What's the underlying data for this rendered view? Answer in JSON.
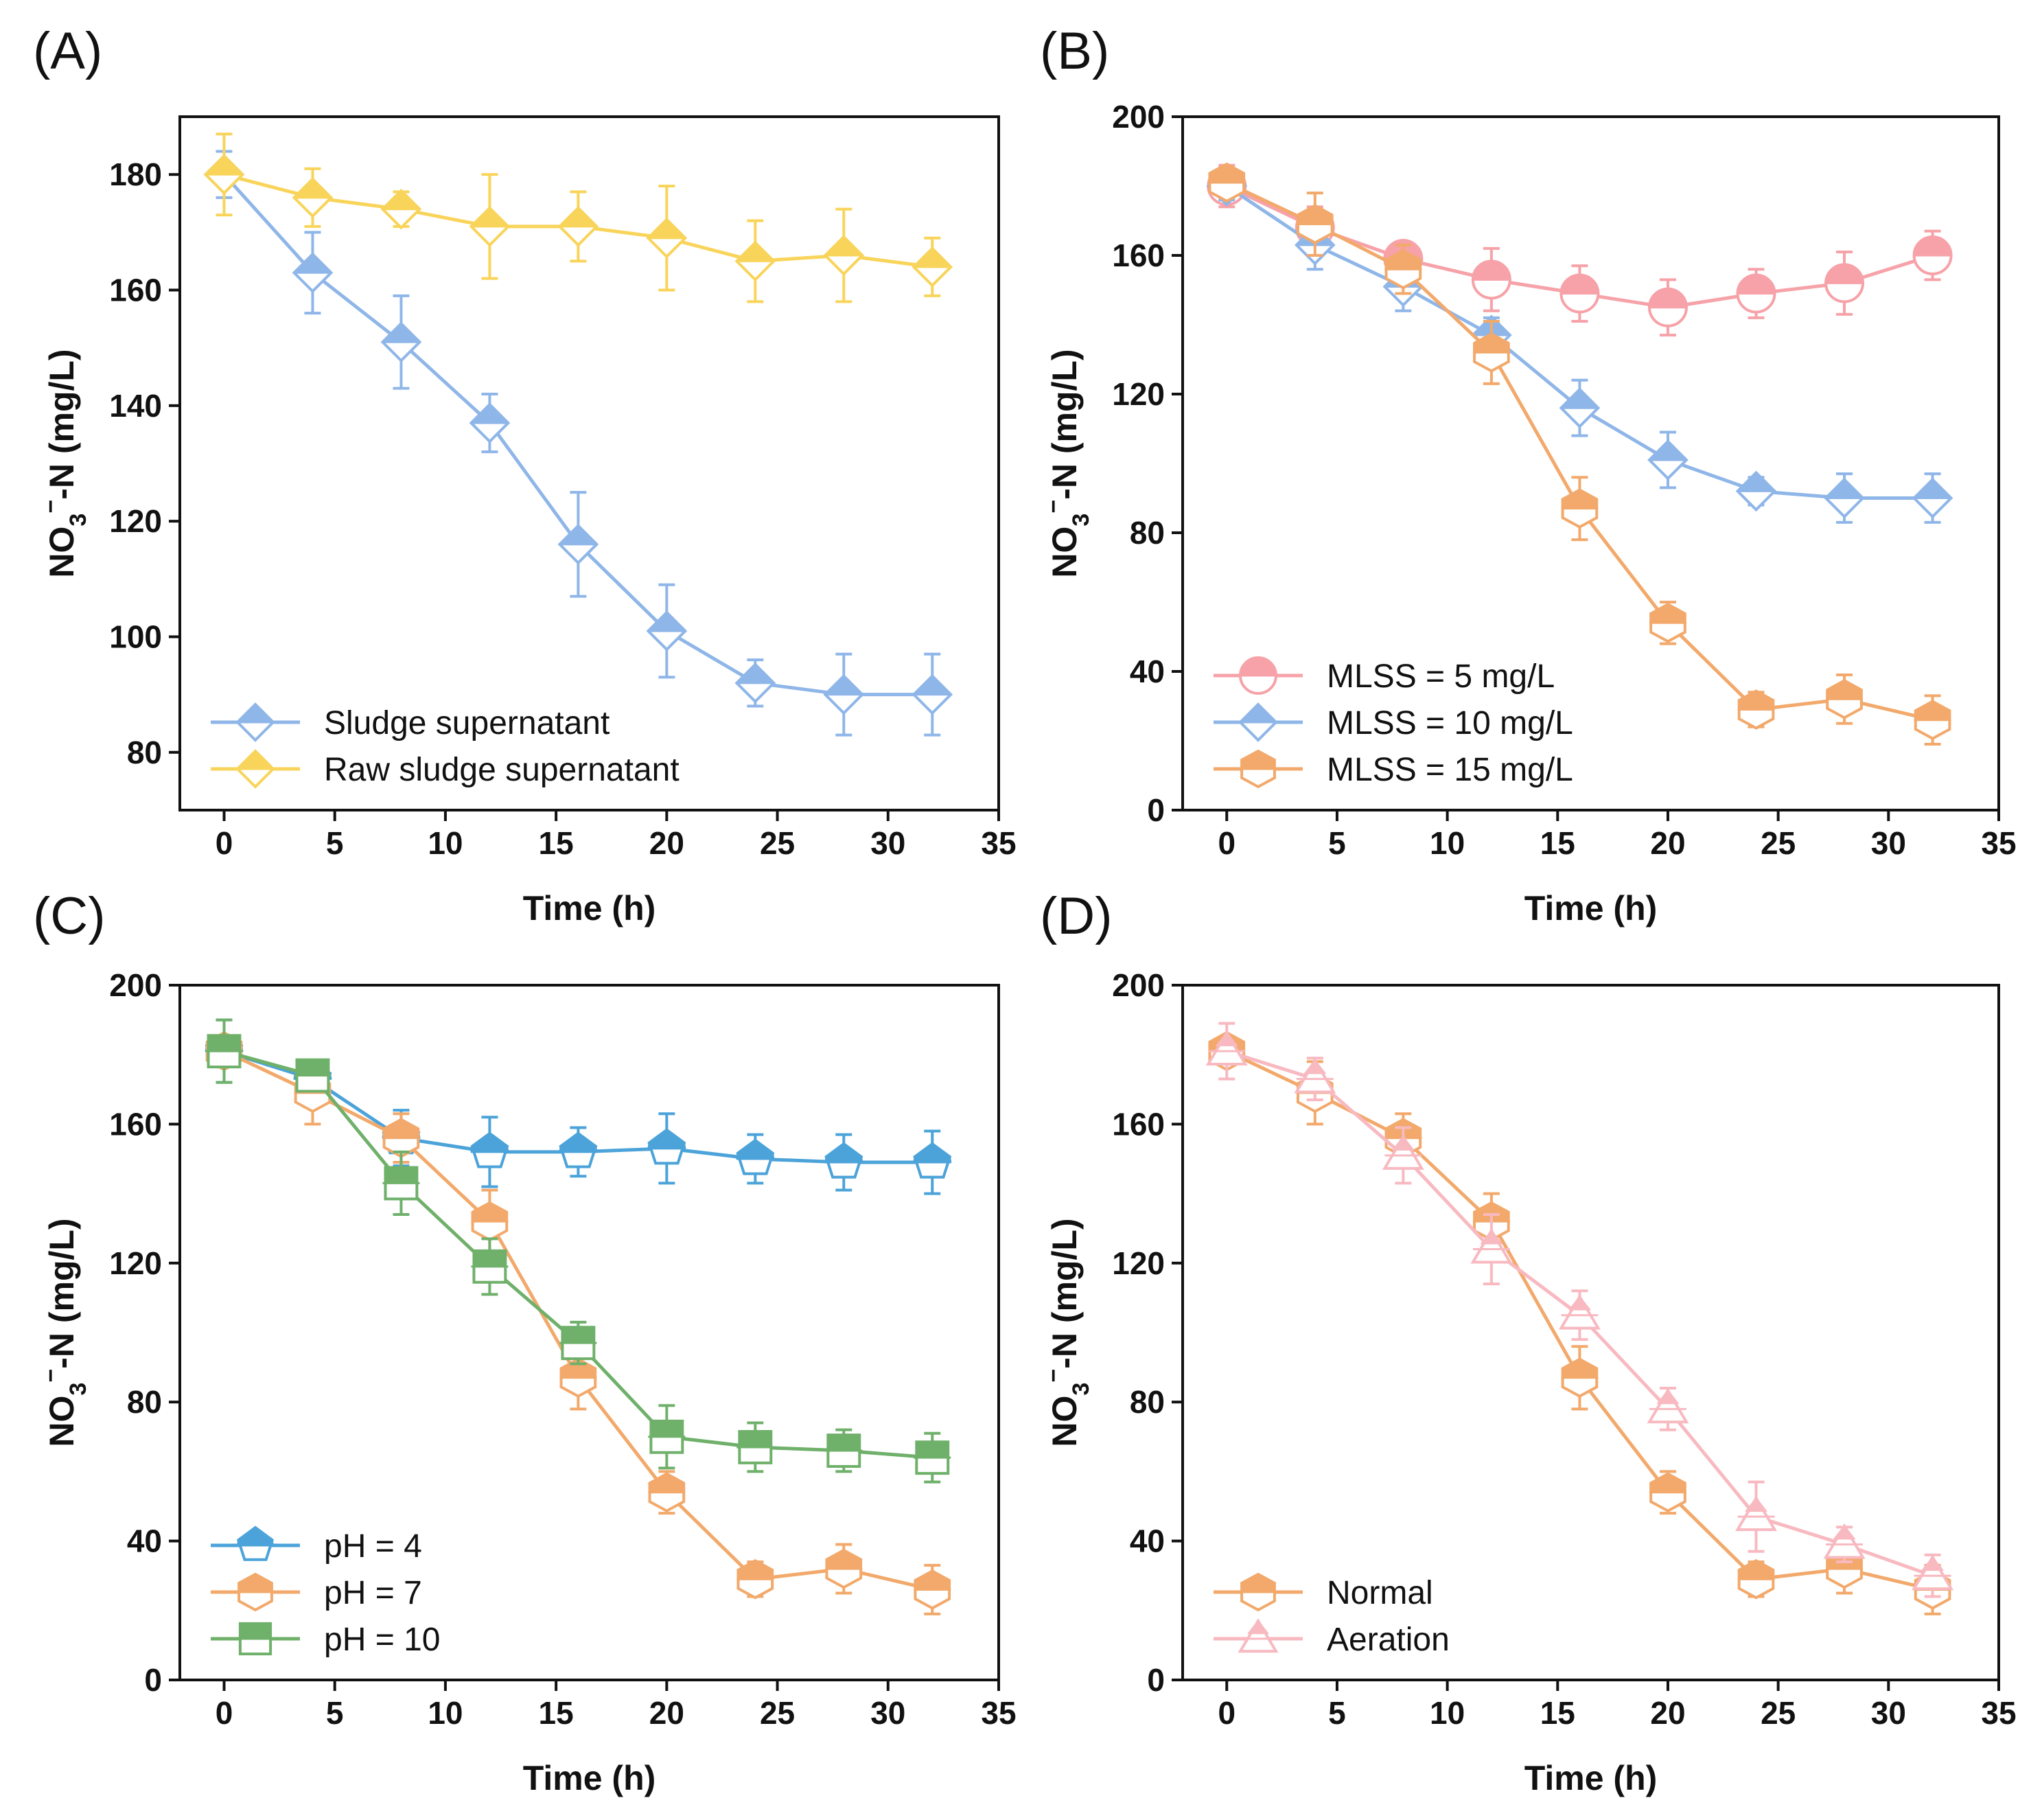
{
  "chart_data": [
    {
      "id": "A",
      "type": "line",
      "panel_label": "(A)",
      "xlabel": "Time (h)",
      "ylabel_main": "NO",
      "ylabel_sub": "3",
      "ylabel_sup": "−",
      "ylabel_rest": "-N (mg/L)",
      "xlim": [
        -2,
        35
      ],
      "ylim": [
        70,
        190
      ],
      "xticks": [
        0,
        5,
        10,
        15,
        20,
        25,
        30,
        35
      ],
      "yticks": [
        80,
        100,
        120,
        140,
        160,
        180
      ],
      "legend_position": "bottom-left",
      "x": [
        0,
        4,
        8,
        12,
        16,
        20,
        24,
        28,
        32
      ],
      "series": [
        {
          "name": "Sludge supernatant",
          "color": "#8fb6e8",
          "marker": "diamond",
          "values": [
            180,
            163,
            151,
            137,
            116,
            101,
            92,
            90,
            90
          ],
          "errors": [
            4,
            7,
            8,
            5,
            9,
            8,
            4,
            7,
            7
          ]
        },
        {
          "name": "Raw sludge supernatant",
          "color": "#f9d45a",
          "marker": "diamond",
          "values": [
            180,
            176,
            174,
            171,
            171,
            169,
            165,
            166,
            164
          ],
          "errors": [
            7,
            5,
            3,
            9,
            6,
            9,
            7,
            8,
            5
          ]
        }
      ]
    },
    {
      "id": "B",
      "type": "line",
      "panel_label": "(B)",
      "xlabel": "Time (h)",
      "ylabel_main": "NO",
      "ylabel_sub": "3",
      "ylabel_sup": "−",
      "ylabel_rest": "-N (mg/L)",
      "xlim": [
        -2,
        35
      ],
      "ylim": [
        0,
        200
      ],
      "xticks": [
        0,
        5,
        10,
        15,
        20,
        25,
        30,
        35
      ],
      "yticks": [
        0,
        40,
        80,
        120,
        160,
        200
      ],
      "legend_position": "bottom-left",
      "x": [
        0,
        4,
        8,
        12,
        16,
        20,
        24,
        28,
        32
      ],
      "series": [
        {
          "name": "MLSS = 5 mg/L",
          "color": "#f6a2a8",
          "marker": "circle",
          "values": [
            180,
            168,
            159,
            153,
            149,
            145,
            149,
            152,
            160
          ],
          "errors": [
            6,
            6,
            4,
            9,
            8,
            8,
            7,
            9,
            7
          ]
        },
        {
          "name": "MLSS = 10 mg/L",
          "color": "#8fb6e8",
          "marker": "diamond",
          "values": [
            180,
            163,
            151,
            137,
            116,
            101,
            92,
            90,
            90
          ],
          "errors": [
            4,
            7,
            7,
            5,
            8,
            8,
            4,
            7,
            7
          ]
        },
        {
          "name": "MLSS = 15 mg/L",
          "color": "#f2a96b",
          "marker": "hexagon",
          "values": [
            181,
            169,
            156,
            132,
            87,
            54,
            29,
            32,
            26
          ],
          "errors": [
            4,
            9,
            7,
            9,
            9,
            6,
            5,
            7,
            7
          ]
        }
      ]
    },
    {
      "id": "C",
      "type": "line",
      "panel_label": "(C)",
      "xlabel": "Time (h)",
      "ylabel_main": "NO",
      "ylabel_sub": "3",
      "ylabel_sup": "−",
      "ylabel_rest": "-N (mg/L)",
      "xlim": [
        -2,
        35
      ],
      "ylim": [
        0,
        200
      ],
      "xticks": [
        0,
        5,
        10,
        15,
        20,
        25,
        30,
        35
      ],
      "yticks": [
        0,
        40,
        80,
        120,
        160,
        200
      ],
      "legend_position": "bottom-left",
      "x": [
        0,
        4,
        8,
        12,
        16,
        20,
        24,
        28,
        32
      ],
      "series": [
        {
          "name": "pH = 4",
          "color": "#4ba3d9",
          "marker": "pentagon",
          "values": [
            181,
            173,
            156,
            152,
            152,
            153,
            150,
            149,
            149
          ],
          "errors": [
            9,
            5,
            8,
            10,
            7,
            10,
            7,
            8,
            9
          ]
        },
        {
          "name": "pH = 7",
          "color": "#f2a96b",
          "marker": "hexagon",
          "values": [
            181,
            169,
            156,
            132,
            87,
            54,
            29,
            32,
            26
          ],
          "errors": [
            4,
            9,
            7,
            9,
            9,
            6,
            5,
            7,
            7
          ]
        },
        {
          "name": "pH = 10",
          "color": "#6fb06a",
          "marker": "square",
          "values": [
            181,
            174,
            143,
            119,
            97,
            70,
            67,
            66,
            64
          ],
          "errors": [
            9,
            4,
            9,
            8,
            6,
            9,
            7,
            6,
            7
          ]
        }
      ]
    },
    {
      "id": "D",
      "type": "line",
      "panel_label": "(D)",
      "xlabel": "Time (h)",
      "ylabel_main": "NO",
      "ylabel_sub": "3",
      "ylabel_sup": "−",
      "ylabel_rest": "-N (mg/L)",
      "xlim": [
        -2,
        35
      ],
      "ylim": [
        0,
        200
      ],
      "xticks": [
        0,
        5,
        10,
        15,
        20,
        25,
        30,
        35
      ],
      "yticks": [
        0,
        40,
        80,
        120,
        160,
        200
      ],
      "legend_position": "bottom-left",
      "x": [
        0,
        4,
        8,
        12,
        16,
        20,
        24,
        28,
        32
      ],
      "series": [
        {
          "name": "Normal",
          "color": "#f2a96b",
          "marker": "hexagon",
          "values": [
            181,
            169,
            156,
            132,
            87,
            54,
            29,
            32,
            26
          ],
          "errors": [
            4,
            9,
            7,
            8,
            9,
            6,
            5,
            7,
            7
          ]
        },
        {
          "name": "Aeration",
          "color": "#f8b9c0",
          "marker": "triangle",
          "values": [
            181,
            173,
            151,
            124,
            105,
            78,
            47,
            39,
            30
          ],
          "errors": [
            8,
            6,
            8,
            10,
            7,
            6,
            10,
            5,
            6
          ]
        }
      ]
    }
  ]
}
